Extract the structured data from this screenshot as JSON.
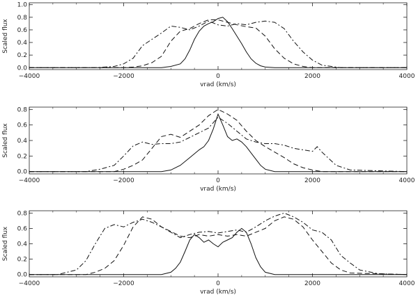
{
  "chart_data": [
    {
      "type": "line",
      "xlabel": "vrad (km/s)",
      "ylabel": "Scaled flux",
      "xlim": [
        -4000,
        4000
      ],
      "ylim": [
        -0.03,
        1.03
      ],
      "xticks": [
        -4000,
        -2000,
        0,
        2000,
        4000
      ],
      "yticks": [
        0.0,
        0.2,
        0.4,
        0.6,
        0.8,
        1.0
      ],
      "ytick_labels": [
        "0.0",
        "0.2",
        "0.4",
        "0.6",
        "0.8",
        "1.0"
      ],
      "grid": false,
      "series": [
        {
          "style": "solid",
          "x": [
            -4000,
            -1200,
            -1000,
            -800,
            -700,
            -600,
            -500,
            -400,
            -300,
            -200,
            -100,
            0,
            100,
            200,
            300,
            400,
            500,
            600,
            700,
            800,
            900,
            1000,
            1200,
            4000
          ],
          "y": [
            0,
            0,
            0.02,
            0.06,
            0.14,
            0.28,
            0.45,
            0.58,
            0.66,
            0.7,
            0.73,
            0.78,
            0.8,
            0.73,
            0.62,
            0.5,
            0.38,
            0.25,
            0.14,
            0.07,
            0.03,
            0.01,
            0,
            0
          ]
        },
        {
          "style": "dashed",
          "x": [
            -4000,
            -2000,
            -1800,
            -1600,
            -1400,
            -1200,
            -1000,
            -800,
            -600,
            -400,
            -200,
            0,
            200,
            400,
            600,
            800,
            1000,
            1200,
            1400,
            1600,
            1800,
            2000,
            4000
          ],
          "y": [
            0,
            0,
            0.01,
            0.03,
            0.08,
            0.18,
            0.42,
            0.58,
            0.62,
            0.7,
            0.76,
            0.76,
            0.72,
            0.68,
            0.65,
            0.63,
            0.5,
            0.3,
            0.15,
            0.06,
            0.02,
            0,
            0
          ]
        },
        {
          "style": "dashdot",
          "x": [
            -4000,
            -2600,
            -2200,
            -2000,
            -1800,
            -1600,
            -1400,
            -1200,
            -1000,
            -800,
            -600,
            -400,
            -200,
            0,
            200,
            400,
            600,
            800,
            1000,
            1200,
            1400,
            1600,
            1800,
            2000,
            2200,
            2600,
            4000
          ],
          "y": [
            0,
            0,
            0.02,
            0.06,
            0.15,
            0.35,
            0.45,
            0.55,
            0.66,
            0.64,
            0.6,
            0.66,
            0.74,
            0.68,
            0.66,
            0.7,
            0.68,
            0.72,
            0.74,
            0.72,
            0.62,
            0.42,
            0.25,
            0.12,
            0.04,
            0,
            0
          ]
        }
      ]
    },
    {
      "type": "line",
      "xlabel": "vrad (km/s)",
      "ylabel": "Scaled flux",
      "xlim": [
        -4000,
        4000
      ],
      "ylim": [
        -0.03,
        0.83
      ],
      "xticks": [
        -4000,
        -2000,
        0,
        2000,
        4000
      ],
      "yticks": [
        0.0,
        0.2,
        0.4,
        0.6,
        0.8
      ],
      "ytick_labels": [
        "0.0",
        "0.2",
        "0.4",
        "0.6",
        "0.8"
      ],
      "grid": false,
      "series": [
        {
          "style": "solid",
          "x": [
            -4000,
            -1200,
            -1000,
            -800,
            -600,
            -400,
            -300,
            -200,
            -100,
            0,
            100,
            200,
            300,
            400,
            500,
            600,
            700,
            800,
            900,
            1000,
            1200,
            4000
          ],
          "y": [
            0,
            0,
            0.02,
            0.08,
            0.18,
            0.28,
            0.32,
            0.4,
            0.55,
            0.74,
            0.6,
            0.45,
            0.4,
            0.42,
            0.38,
            0.32,
            0.24,
            0.16,
            0.08,
            0.03,
            0,
            0
          ]
        },
        {
          "style": "dashed",
          "x": [
            -4000,
            -2200,
            -2000,
            -1800,
            -1600,
            -1400,
            -1200,
            -1000,
            -800,
            -600,
            -400,
            -200,
            0,
            200,
            400,
            600,
            800,
            1000,
            1200,
            1400,
            1600,
            1800,
            2000,
            2200,
            4000
          ],
          "y": [
            0,
            0,
            0.03,
            0.08,
            0.15,
            0.3,
            0.45,
            0.48,
            0.44,
            0.52,
            0.6,
            0.72,
            0.8,
            0.74,
            0.66,
            0.52,
            0.4,
            0.32,
            0.25,
            0.18,
            0.1,
            0.05,
            0.02,
            0,
            0
          ]
        },
        {
          "style": "dashdot",
          "x": [
            -4000,
            -2800,
            -2500,
            -2200,
            -2000,
            -1800,
            -1600,
            -1400,
            -1200,
            -1000,
            -800,
            -600,
            -400,
            -200,
            0,
            200,
            400,
            600,
            800,
            1000,
            1200,
            1400,
            1600,
            1800,
            2000,
            2100,
            2200,
            2500,
            2800,
            4000
          ],
          "y": [
            0,
            0,
            0.03,
            0.08,
            0.2,
            0.33,
            0.38,
            0.35,
            0.36,
            0.36,
            0.38,
            0.44,
            0.5,
            0.56,
            0.7,
            0.62,
            0.52,
            0.42,
            0.38,
            0.36,
            0.36,
            0.34,
            0.3,
            0.28,
            0.26,
            0.32,
            0.25,
            0.08,
            0.02,
            0
          ]
        }
      ]
    },
    {
      "type": "line",
      "xlabel": "vrad (km/s)",
      "ylabel": "Scaled flux",
      "xlim": [
        -4000,
        4000
      ],
      "ylim": [
        -0.03,
        0.83
      ],
      "xticks": [
        -4000,
        -2000,
        0,
        2000,
        4000
      ],
      "yticks": [
        0.0,
        0.2,
        0.4,
        0.6,
        0.8
      ],
      "ytick_labels": [
        "0.0",
        "0.2",
        "0.4",
        "0.6",
        "0.8"
      ],
      "grid": false,
      "series": [
        {
          "style": "solid",
          "x": [
            -4000,
            -1200,
            -1000,
            -900,
            -800,
            -700,
            -600,
            -500,
            -400,
            -300,
            -200,
            -100,
            0,
            100,
            200,
            300,
            400,
            500,
            600,
            700,
            800,
            900,
            1000,
            1200,
            4000
          ],
          "y": [
            0,
            0,
            0.03,
            0.08,
            0.16,
            0.3,
            0.45,
            0.52,
            0.48,
            0.42,
            0.45,
            0.4,
            0.36,
            0.42,
            0.45,
            0.48,
            0.55,
            0.6,
            0.55,
            0.4,
            0.22,
            0.1,
            0.03,
            0,
            0
          ]
        },
        {
          "style": "dashed",
          "x": [
            -4000,
            -2800,
            -2600,
            -2400,
            -2200,
            -2000,
            -1800,
            -1600,
            -1400,
            -1200,
            -1000,
            -800,
            -600,
            -400,
            -200,
            0,
            200,
            400,
            600,
            800,
            1000,
            1200,
            1400,
            1600,
            1800,
            2000,
            2200,
            2400,
            2600,
            2800,
            4000
          ],
          "y": [
            0,
            0,
            0.03,
            0.08,
            0.18,
            0.38,
            0.62,
            0.75,
            0.72,
            0.62,
            0.56,
            0.5,
            0.48,
            0.52,
            0.5,
            0.52,
            0.5,
            0.52,
            0.5,
            0.55,
            0.6,
            0.7,
            0.75,
            0.72,
            0.62,
            0.45,
            0.3,
            0.15,
            0.06,
            0.02,
            0
          ]
        },
        {
          "style": "dashdot",
          "x": [
            -4000,
            -3400,
            -3000,
            -2800,
            -2600,
            -2400,
            -2200,
            -2000,
            -1800,
            -1600,
            -1400,
            -1200,
            -1000,
            -800,
            -600,
            -400,
            -200,
            0,
            200,
            400,
            600,
            800,
            1000,
            1200,
            1400,
            1600,
            1800,
            2000,
            2200,
            2400,
            2600,
            2800,
            3000,
            3400,
            4000
          ],
          "y": [
            0,
            0,
            0.06,
            0.18,
            0.4,
            0.6,
            0.65,
            0.62,
            0.68,
            0.72,
            0.68,
            0.62,
            0.55,
            0.48,
            0.52,
            0.55,
            0.56,
            0.54,
            0.56,
            0.58,
            0.55,
            0.62,
            0.7,
            0.76,
            0.8,
            0.75,
            0.68,
            0.58,
            0.55,
            0.45,
            0.25,
            0.15,
            0.06,
            0.01,
            0
          ]
        }
      ]
    }
  ]
}
